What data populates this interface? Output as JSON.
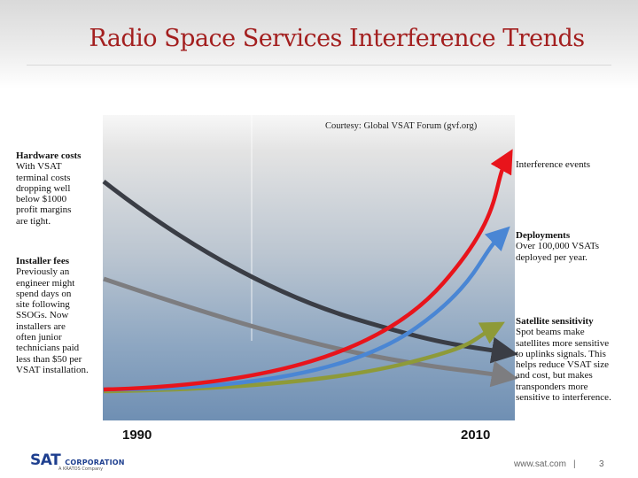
{
  "slide": {
    "title": "Radio Space Services Interference Trends",
    "courtesy": "Courtesy: Global VSAT Forum (gvf.org)"
  },
  "left_notes": [
    {
      "heading": "Hardware costs",
      "body": [
        "With VSAT",
        "terminal costs",
        "dropping well",
        "below $1000",
        "profit margins",
        "are tight."
      ]
    },
    {
      "heading": "Installer fees",
      "body": [
        "Previously an",
        "engineer might",
        "spend days on",
        "site following",
        "SSOGs. Now",
        "installers are",
        "often junior",
        "technicians paid",
        "less than $50 per",
        "VSAT installation."
      ]
    }
  ],
  "right_notes": [
    {
      "heading": "Interference events",
      "body": []
    },
    {
      "heading": "Deployments",
      "body": [
        "Over 100,000 VSATs",
        "deployed per year."
      ]
    },
    {
      "heading": "Satellite sensitivity",
      "body": [
        "Spot beams make",
        "satellites more sensitive",
        "to uplinks signals. This",
        "helps reduce VSAT size",
        "and cost, but makes",
        "transponders more",
        "sensitive to interference."
      ]
    }
  ],
  "axis": {
    "start_year": "1990",
    "end_year": "2010"
  },
  "trend_curves": [
    {
      "id": "hardware-costs",
      "direction": "decreasing",
      "color": "#3a3d45"
    },
    {
      "id": "installer-fees",
      "direction": "decreasing",
      "color": "#7d7d80"
    },
    {
      "id": "interference-events",
      "direction": "increasing",
      "color": "#e8141b"
    },
    {
      "id": "deployments",
      "direction": "increasing",
      "color": "#4a86d4"
    },
    {
      "id": "satellite-sensitivity",
      "direction": "increasing",
      "color": "#8e9a38"
    }
  ],
  "footer": {
    "logo_main": "SAT",
    "logo_sub": "CORPORATION",
    "logo_tag": "A KRATOS Company",
    "url": "www.sat.com",
    "separator": "|",
    "page": "3"
  }
}
